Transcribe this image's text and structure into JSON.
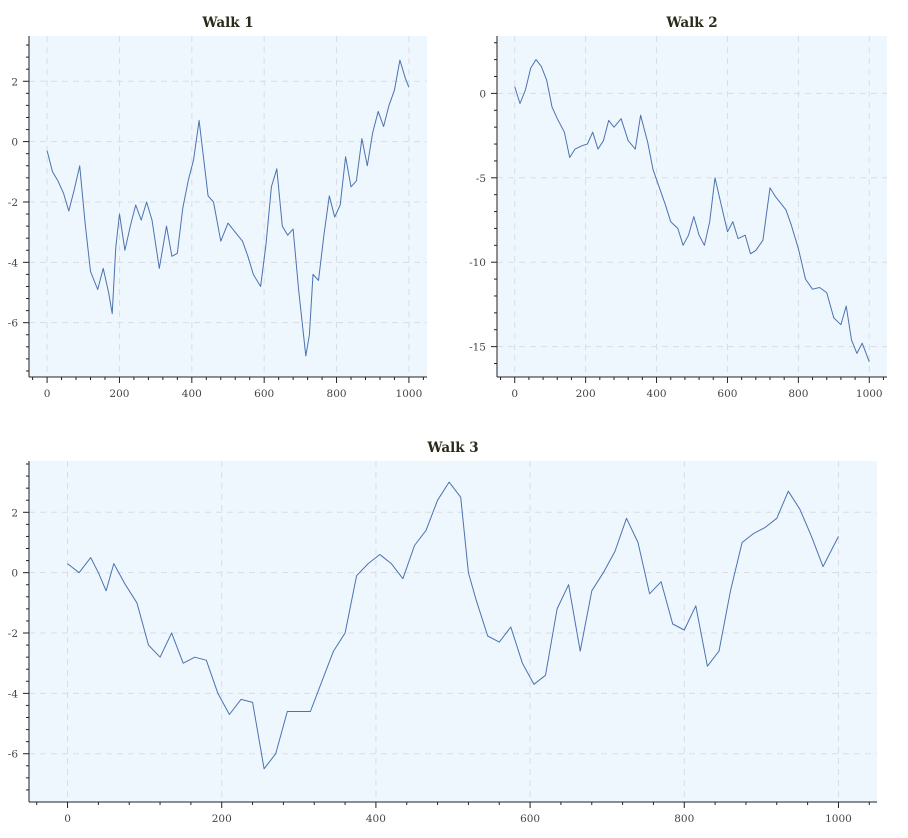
{
  "colors": {
    "line": "#4c72b0",
    "plot_background": "#eef7fe",
    "title": "#2a2a1a"
  },
  "chart_data": [
    {
      "type": "line",
      "title": "Walk 1",
      "xlim": [
        -50,
        1050
      ],
      "ylim": [
        -7.8,
        3.5
      ],
      "grid": true,
      "x_ticks": [
        0,
        200,
        400,
        600,
        800,
        1000
      ],
      "y_ticks": [
        -6,
        -4,
        -2,
        0,
        2
      ],
      "series": [
        {
          "x": [
            0,
            15,
            30,
            45,
            60,
            75,
            90,
            105,
            120,
            140,
            155,
            170,
            180,
            190,
            200,
            215,
            230,
            245,
            260,
            275,
            290,
            310,
            330,
            345,
            360,
            375,
            390,
            405,
            420,
            430,
            445,
            460,
            480,
            500,
            520,
            540,
            555,
            570,
            590,
            605,
            620,
            635,
            650,
            665,
            680,
            695,
            705,
            715,
            725,
            735,
            750,
            765,
            780,
            795,
            810,
            825,
            840,
            855,
            870,
            885,
            900,
            915,
            930,
            945,
            960,
            975,
            990,
            1000
          ],
          "y": [
            -0.3,
            -1.0,
            -1.3,
            -1.7,
            -2.3,
            -1.6,
            -0.8,
            -2.7,
            -4.3,
            -4.9,
            -4.2,
            -5.0,
            -5.7,
            -3.5,
            -2.4,
            -3.6,
            -2.8,
            -2.1,
            -2.6,
            -2.0,
            -2.6,
            -4.2,
            -2.8,
            -3.8,
            -3.7,
            -2.2,
            -1.3,
            -0.6,
            0.7,
            -0.3,
            -1.8,
            -2.0,
            -3.3,
            -2.7,
            -3.0,
            -3.3,
            -3.8,
            -4.4,
            -4.8,
            -3.4,
            -1.5,
            -0.9,
            -2.8,
            -3.1,
            -2.9,
            -4.9,
            -6.0,
            -7.1,
            -6.4,
            -4.4,
            -4.6,
            -3.1,
            -1.8,
            -2.5,
            -2.1,
            -0.5,
            -1.5,
            -1.3,
            0.1,
            -0.8,
            0.3,
            1.0,
            0.5,
            1.2,
            1.7,
            2.7,
            2.1,
            1.8
          ]
        }
      ]
    },
    {
      "type": "line",
      "title": "Walk 2",
      "xlim": [
        -50,
        1050
      ],
      "ylim": [
        -16.8,
        3.4
      ],
      "grid": true,
      "x_ticks": [
        0,
        200,
        400,
        600,
        800,
        1000
      ],
      "y_ticks": [
        -15,
        -10,
        -5,
        0
      ],
      "series": [
        {
          "x": [
            0,
            15,
            30,
            45,
            60,
            75,
            90,
            105,
            120,
            140,
            155,
            170,
            190,
            205,
            220,
            235,
            250,
            265,
            280,
            300,
            320,
            340,
            355,
            375,
            390,
            405,
            425,
            440,
            460,
            475,
            490,
            505,
            520,
            535,
            550,
            565,
            580,
            600,
            615,
            630,
            650,
            665,
            680,
            700,
            720,
            735,
            750,
            765,
            780,
            800,
            820,
            840,
            860,
            880,
            900,
            920,
            935,
            950,
            965,
            980,
            1000
          ],
          "y": [
            0.4,
            -0.6,
            0.2,
            1.5,
            2.0,
            1.6,
            0.8,
            -0.8,
            -1.5,
            -2.3,
            -3.8,
            -3.3,
            -3.1,
            -3.0,
            -2.3,
            -3.3,
            -2.8,
            -1.6,
            -2.0,
            -1.5,
            -2.8,
            -3.3,
            -1.3,
            -2.9,
            -4.5,
            -5.4,
            -6.6,
            -7.6,
            -8.0,
            -9.0,
            -8.4,
            -7.3,
            -8.4,
            -9.0,
            -7.6,
            -5.0,
            -6.4,
            -8.2,
            -7.6,
            -8.6,
            -8.4,
            -9.5,
            -9.3,
            -8.7,
            -5.6,
            -6.1,
            -6.5,
            -6.9,
            -7.8,
            -9.2,
            -11.0,
            -11.6,
            -11.5,
            -11.8,
            -13.3,
            -13.7,
            -12.6,
            -14.6,
            -15.4,
            -14.8,
            -15.9
          ]
        }
      ]
    },
    {
      "type": "line",
      "title": "Walk 3",
      "xlim": [
        -50,
        1050
      ],
      "ylim": [
        -7.6,
        3.7
      ],
      "grid": true,
      "x_ticks": [
        0,
        200,
        400,
        600,
        800,
        1000
      ],
      "y_ticks": [
        -6,
        -4,
        -2,
        0,
        2
      ],
      "series": [
        {
          "x": [
            0,
            15,
            30,
            40,
            50,
            60,
            75,
            90,
            105,
            120,
            135,
            150,
            165,
            180,
            195,
            210,
            225,
            240,
            255,
            270,
            285,
            300,
            315,
            330,
            345,
            360,
            375,
            390,
            405,
            420,
            435,
            450,
            465,
            480,
            495,
            510,
            520,
            530,
            545,
            560,
            575,
            590,
            605,
            620,
            635,
            650,
            665,
            680,
            695,
            710,
            725,
            740,
            755,
            770,
            785,
            800,
            815,
            830,
            845,
            860,
            875,
            890,
            905,
            920,
            935,
            950,
            965,
            980,
            1000
          ],
          "y": [
            0.3,
            0.0,
            0.5,
            0.0,
            -0.6,
            0.3,
            -0.4,
            -1.0,
            -2.4,
            -2.8,
            -2.0,
            -3.0,
            -2.8,
            -2.9,
            -4.0,
            -4.7,
            -4.2,
            -4.3,
            -6.5,
            -6.0,
            -4.6,
            -4.6,
            -4.6,
            -3.6,
            -2.6,
            -2.0,
            -0.1,
            0.3,
            0.6,
            0.3,
            -0.2,
            0.9,
            1.4,
            2.4,
            3.0,
            2.5,
            0.0,
            -0.9,
            -2.1,
            -2.3,
            -1.8,
            -3.0,
            -3.7,
            -3.4,
            -1.2,
            -0.4,
            -2.6,
            -0.6,
            0.0,
            0.7,
            1.8,
            1.0,
            -0.7,
            -0.3,
            -1.7,
            -1.9,
            -1.1,
            -3.1,
            -2.6,
            -0.6,
            1.0,
            1.3,
            1.5,
            1.8,
            2.7,
            2.1,
            1.2,
            0.2,
            1.2
          ]
        }
      ]
    }
  ]
}
